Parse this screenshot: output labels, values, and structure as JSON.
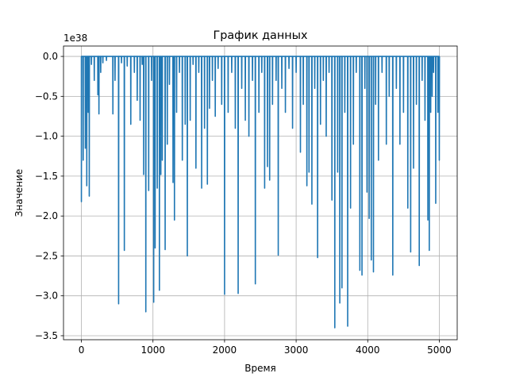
{
  "chart_data": {
    "type": "line",
    "title": "График данных",
    "xlabel": "Время",
    "ylabel": "Значение",
    "y_offset_label": "1e38",
    "y_scale": 1e+38,
    "xlim": [
      -250,
      5250
    ],
    "ylim": [
      -3.55,
      0.13
    ],
    "grid": true,
    "x_ticks": [
      0,
      1000,
      2000,
      3000,
      4000,
      5000
    ],
    "x_tick_labels": [
      "0",
      "1000",
      "2000",
      "3000",
      "4000",
      "5000"
    ],
    "y_ticks": [
      0.0,
      -0.5,
      -1.0,
      -1.5,
      -2.0,
      -2.5,
      -3.0,
      -3.5
    ],
    "y_tick_labels": [
      "0.0",
      "−0.5",
      "−1.0",
      "−1.5",
      "−2.0",
      "−2.5",
      "−3.0",
      "−3.5"
    ],
    "series": [
      {
        "color": "#1f77b4",
        "baseline": 0.0,
        "x_range": [
          0,
          5000
        ],
        "spikes": [
          [
            0,
            -1.82
          ],
          [
            25,
            -1.3
          ],
          [
            55,
            -1.15
          ],
          [
            75,
            -1.62
          ],
          [
            95,
            -0.7
          ],
          [
            110,
            -1.75
          ],
          [
            140,
            -0.1
          ],
          [
            180,
            -0.3
          ],
          [
            230,
            -0.48
          ],
          [
            245,
            -0.72
          ],
          [
            270,
            -0.2
          ],
          [
            300,
            -0.08
          ],
          [
            350,
            -0.05
          ],
          [
            440,
            -0.72
          ],
          [
            470,
            -0.3
          ],
          [
            520,
            -3.1
          ],
          [
            560,
            -0.08
          ],
          [
            600,
            -2.43
          ],
          [
            640,
            -0.12
          ],
          [
            690,
            -0.85
          ],
          [
            740,
            -0.2
          ],
          [
            780,
            -0.55
          ],
          [
            820,
            -0.8
          ],
          [
            850,
            -0.1
          ],
          [
            870,
            -1.48
          ],
          [
            900,
            -3.2
          ],
          [
            940,
            -1.68
          ],
          [
            980,
            -0.3
          ],
          [
            1010,
            -3.08
          ],
          [
            1030,
            -2.4
          ],
          [
            1060,
            -1.65
          ],
          [
            1090,
            -2.93
          ],
          [
            1110,
            -1.48
          ],
          [
            1130,
            -1.3
          ],
          [
            1170,
            -2.42
          ],
          [
            1200,
            -1.1
          ],
          [
            1230,
            -0.35
          ],
          [
            1280,
            -1.58
          ],
          [
            1300,
            -2.05
          ],
          [
            1330,
            -0.7
          ],
          [
            1370,
            -0.2
          ],
          [
            1410,
            -1.3
          ],
          [
            1450,
            -0.85
          ],
          [
            1480,
            -2.5
          ],
          [
            1520,
            -0.8
          ],
          [
            1560,
            -0.1
          ],
          [
            1600,
            -1.4
          ],
          [
            1640,
            -0.2
          ],
          [
            1680,
            -1.65
          ],
          [
            1720,
            -0.9
          ],
          [
            1760,
            -1.6
          ],
          [
            1790,
            -0.65
          ],
          [
            1830,
            -0.3
          ],
          [
            1870,
            -0.75
          ],
          [
            1910,
            -0.15
          ],
          [
            1960,
            -0.6
          ],
          [
            2000,
            -2.98
          ],
          [
            2050,
            -0.7
          ],
          [
            2100,
            -0.2
          ],
          [
            2150,
            -0.9
          ],
          [
            2190,
            -2.97
          ],
          [
            2240,
            -0.4
          ],
          [
            2290,
            -0.8
          ],
          [
            2340,
            -1.0
          ],
          [
            2390,
            -0.3
          ],
          [
            2430,
            -2.85
          ],
          [
            2480,
            -0.7
          ],
          [
            2520,
            -0.2
          ],
          [
            2560,
            -1.65
          ],
          [
            2600,
            -1.38
          ],
          [
            2630,
            -1.55
          ],
          [
            2670,
            -0.6
          ],
          [
            2720,
            -0.3
          ],
          [
            2750,
            -2.49
          ],
          [
            2800,
            -0.4
          ],
          [
            2850,
            -0.7
          ],
          [
            2900,
            -0.15
          ],
          [
            2950,
            -0.9
          ],
          [
            3000,
            -0.2
          ],
          [
            3060,
            -1.2
          ],
          [
            3100,
            -0.6
          ],
          [
            3150,
            -1.62
          ],
          [
            3180,
            -1.45
          ],
          [
            3220,
            -1.85
          ],
          [
            3260,
            -0.4
          ],
          [
            3300,
            -2.52
          ],
          [
            3340,
            -0.85
          ],
          [
            3380,
            -0.3
          ],
          [
            3420,
            -1.0
          ],
          [
            3460,
            -0.2
          ],
          [
            3500,
            -1.8
          ],
          [
            3540,
            -3.4
          ],
          [
            3580,
            -1.45
          ],
          [
            3610,
            -3.09
          ],
          [
            3640,
            -2.9
          ],
          [
            3680,
            -0.7
          ],
          [
            3720,
            -3.38
          ],
          [
            3760,
            -1.9
          ],
          [
            3800,
            -1.1
          ],
          [
            3840,
            -0.2
          ],
          [
            3890,
            -2.68
          ],
          [
            3920,
            -2.74
          ],
          [
            3960,
            -0.4
          ],
          [
            3990,
            -1.7
          ],
          [
            4020,
            -2.03
          ],
          [
            4050,
            -2.55
          ],
          [
            4080,
            -2.7
          ],
          [
            4110,
            -0.6
          ],
          [
            4150,
            -1.3
          ],
          [
            4200,
            -0.2
          ],
          [
            4260,
            -1.1
          ],
          [
            4300,
            -0.5
          ],
          [
            4350,
            -2.74
          ],
          [
            4400,
            -0.4
          ],
          [
            4450,
            -1.1
          ],
          [
            4500,
            -0.7
          ],
          [
            4560,
            -1.9
          ],
          [
            4600,
            -2.45
          ],
          [
            4640,
            -1.4
          ],
          [
            4680,
            -0.6
          ],
          [
            4720,
            -2.62
          ],
          [
            4760,
            -0.3
          ],
          [
            4800,
            -0.8
          ],
          [
            4840,
            -2.05
          ],
          [
            4860,
            -2.43
          ],
          [
            4880,
            -0.7
          ],
          [
            4900,
            -0.5
          ],
          [
            4920,
            -0.2
          ],
          [
            4950,
            -1.84
          ],
          [
            4980,
            -0.7
          ],
          [
            5000,
            -1.3
          ]
        ]
      }
    ]
  }
}
